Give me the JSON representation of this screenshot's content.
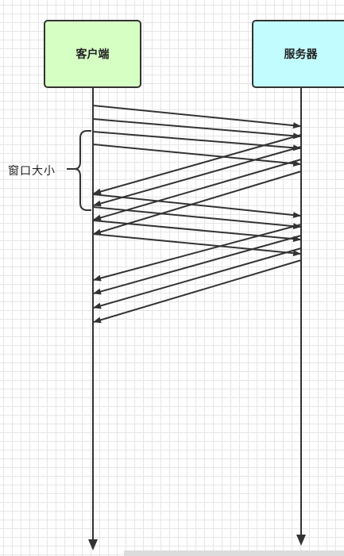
{
  "nodes": {
    "client": {
      "label": "客户端",
      "fill": "#d6ffc4"
    },
    "server": {
      "label": "服务器",
      "fill": "#c2fcff"
    }
  },
  "annotation": {
    "window_label": "窗口大小"
  },
  "colors": {
    "line": "#333333",
    "grid": "#e6e6e6"
  }
}
